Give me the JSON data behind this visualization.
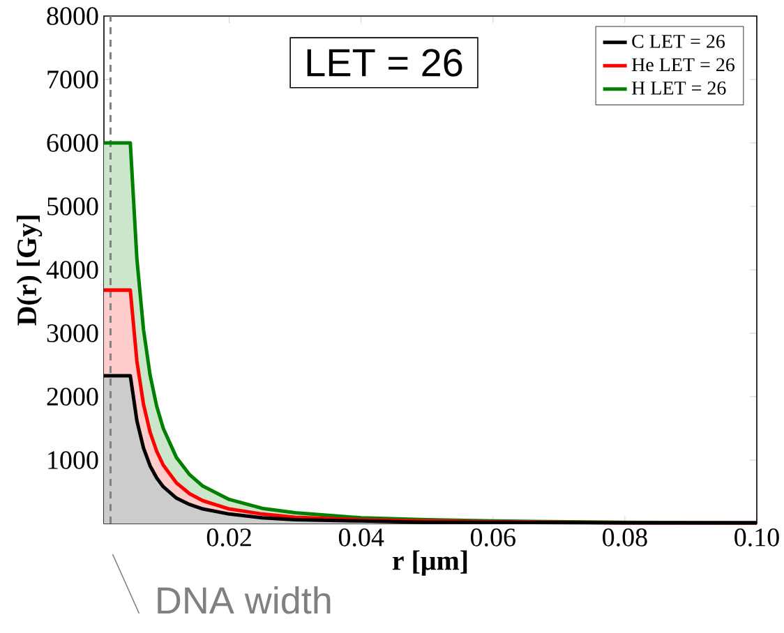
{
  "chart_data": {
    "type": "area",
    "xlabel": "r [μm]",
    "ylabel": "D(r) [Gy]",
    "x": [
      0.001,
      0.005,
      0.006,
      0.007,
      0.008,
      0.009,
      0.01,
      0.012,
      0.014,
      0.016,
      0.02,
      0.025,
      0.03,
      0.04,
      0.05,
      0.06,
      0.08,
      0.1
    ],
    "series": [
      {
        "name": "C LET = 26",
        "color": "#000000",
        "values": [
          2330,
          2330,
          1620,
          1190,
          910,
          720,
          580,
          400,
          300,
          230,
          150,
          90,
          60,
          40,
          20,
          20,
          10,
          10
        ]
      },
      {
        "name": "He LET = 26",
        "color": "#ff0000",
        "values": [
          3680,
          3680,
          2560,
          1880,
          1440,
          1140,
          920,
          640,
          470,
          360,
          230,
          150,
          100,
          60,
          40,
          30,
          10,
          10
        ]
      },
      {
        "name": "H LET = 26",
        "color": "#008000",
        "values": [
          6000,
          6000,
          4170,
          3060,
          2340,
          1850,
          1500,
          1040,
          770,
          590,
          380,
          240,
          170,
          90,
          60,
          40,
          20,
          10
        ]
      }
    ],
    "xlim": [
      0.001,
      0.1
    ],
    "ylim": [
      0,
      8000
    ],
    "xticks": [
      0.02,
      0.04,
      0.06,
      0.08,
      {
        "value": 0.1,
        "label": "0.10"
      }
    ],
    "yticks": [
      1000,
      2000,
      3000,
      4000,
      5000,
      6000,
      7000,
      8000
    ],
    "ref_lines": [
      {
        "axis": "x",
        "value": 0.002,
        "color": "#808080",
        "line_style": "dashed"
      }
    ],
    "annotations": [
      "LET = 26",
      {
        "text": "DNA width",
        "x": 0.002,
        "y": 0
      }
    ],
    "legend": "top right"
  }
}
